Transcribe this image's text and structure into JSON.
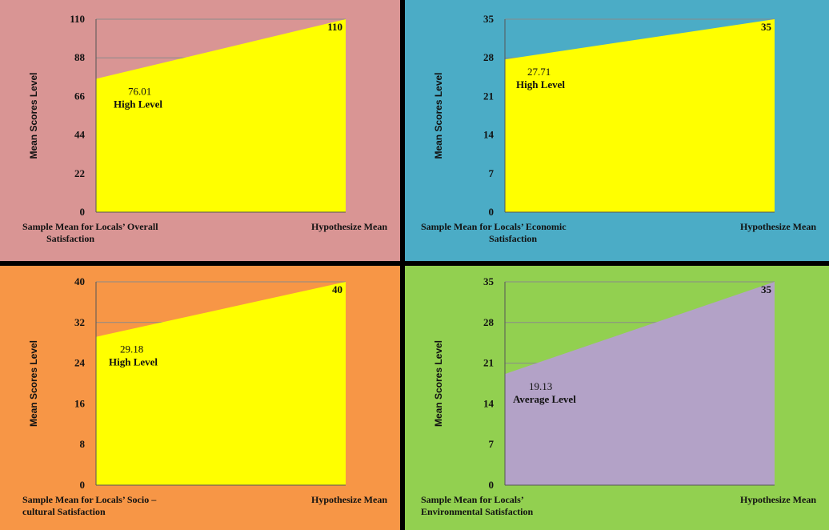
{
  "chart_data": [
    {
      "type": "area",
      "background": "#d99594",
      "fill": "#ffff00",
      "ylabel": "Mean Scores Level",
      "yticks": [
        0,
        22,
        44,
        66,
        88,
        110
      ],
      "ylim": [
        0,
        110
      ],
      "categories": [
        "Sample Mean for Locals' Overall Satisfaction",
        "Hypothesize Mean"
      ],
      "category_lines": [
        [
          "Sample Mean for Locals’ Overall",
          "Satisfaction"
        ],
        [
          "Hypothesize Mean"
        ]
      ],
      "values": [
        76.01,
        110
      ],
      "start_label": "76.01",
      "start_level": "High Level",
      "end_label": "110"
    },
    {
      "type": "area",
      "background": "#4bacc6",
      "fill": "#ffff00",
      "ylabel": "Mean Scores Level",
      "yticks": [
        0,
        7,
        14,
        21,
        28,
        35
      ],
      "ylim": [
        0,
        35
      ],
      "categories": [
        "Sample Mean for Locals' Economic Satisfaction",
        "Hypothesize Mean"
      ],
      "category_lines": [
        [
          "Sample Mean for Locals’ Economic",
          "Satisfaction"
        ],
        [
          "Hypothesize Mean"
        ]
      ],
      "values": [
        27.71,
        35
      ],
      "start_label": "27.71",
      "start_level": "High Level",
      "end_label": "35"
    },
    {
      "type": "area",
      "background": "#f79646",
      "fill": "#ffff00",
      "ylabel": "Mean Scores Level",
      "yticks": [
        0,
        8,
        16,
        24,
        32,
        40
      ],
      "ylim": [
        0,
        40
      ],
      "categories": [
        "Sample Mean for Locals' Socio – cultural Satisfaction",
        "Hypothesize Mean"
      ],
      "category_lines": [
        [
          "Sample Mean for Locals’ Socio –",
          "cultural Satisfaction"
        ],
        [
          "Hypothesize Mean"
        ]
      ],
      "values": [
        29.18,
        40
      ],
      "start_label": "29.18",
      "start_level": "High Level",
      "end_label": "40"
    },
    {
      "type": "area",
      "background": "#92d050",
      "fill": "#b3a2c7",
      "ylabel": "Mean Scores Level",
      "yticks": [
        0,
        7,
        14,
        21,
        28,
        35
      ],
      "ylim": [
        0,
        35
      ],
      "categories": [
        "Sample Mean for Locals' Environmental Satisfaction",
        "Hypothesize Mean"
      ],
      "category_lines": [
        [
          "Sample Mean for Locals’",
          "Environmental Satisfaction"
        ],
        [
          "Hypothesize Mean"
        ]
      ],
      "values": [
        19.13,
        35
      ],
      "start_label": "19.13",
      "start_level": "Average Level",
      "end_label": "35"
    }
  ]
}
